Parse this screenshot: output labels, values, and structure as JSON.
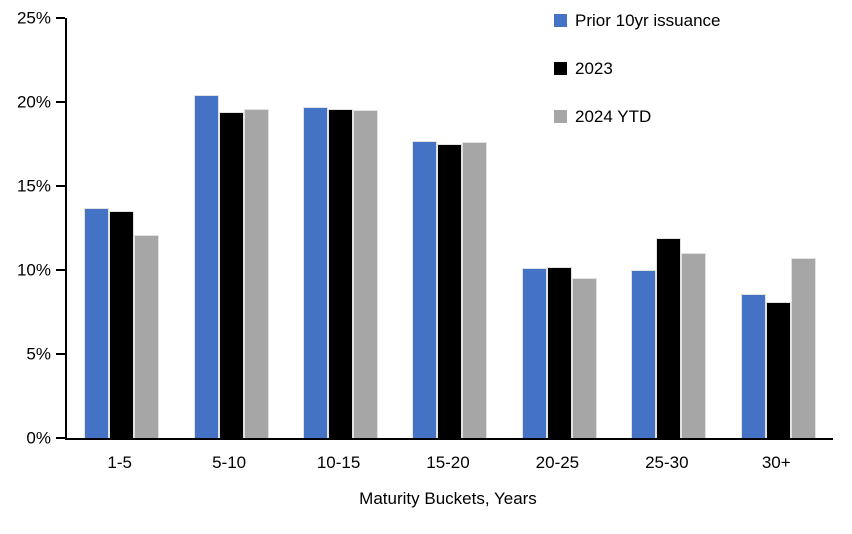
{
  "chart_data": {
    "type": "bar",
    "title": "",
    "xlabel": "Maturity Buckets, Years",
    "ylabel": "",
    "categories": [
      "1-5",
      "5-10",
      "10-15",
      "15-20",
      "20-25",
      "25-30",
      "30+"
    ],
    "series": [
      {
        "name": "Prior 10yr issuance",
        "color": "#4472C4",
        "values": [
          13.7,
          20.4,
          19.7,
          17.7,
          10.1,
          10.0,
          8.6
        ]
      },
      {
        "name": "2023",
        "color": "#000000",
        "values": [
          13.5,
          19.4,
          19.6,
          17.5,
          10.2,
          11.9,
          8.1
        ]
      },
      {
        "name": "2024 YTD",
        "color": "#A6A6A6",
        "values": [
          12.1,
          19.6,
          19.5,
          17.6,
          9.5,
          11.0,
          10.7
        ]
      }
    ],
    "ylim": [
      0,
      25
    ],
    "ytick_values": [
      0,
      5,
      10,
      15,
      20,
      25
    ],
    "ytick_labels": [
      "0%",
      "5%",
      "10%",
      "15%",
      "20%",
      "25%"
    ],
    "grid": false,
    "legend_position": "top-right",
    "axis_color": "#000000",
    "background_color": "#FFFFFF"
  }
}
